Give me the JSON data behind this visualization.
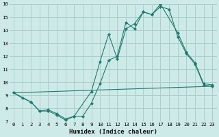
{
  "xlabel": "Humidex (Indice chaleur)",
  "xlim": [
    -0.5,
    23.5
  ],
  "ylim": [
    7,
    16
  ],
  "xticks": [
    0,
    1,
    2,
    3,
    4,
    5,
    6,
    7,
    8,
    9,
    10,
    11,
    12,
    13,
    14,
    15,
    16,
    17,
    18,
    19,
    20,
    21,
    22,
    23
  ],
  "yticks": [
    7,
    8,
    9,
    10,
    11,
    12,
    13,
    14,
    15,
    16
  ],
  "bg_color": "#ceeae8",
  "grid_color": "#aacfcc",
  "line_color": "#1e7a6d",
  "line1_x": [
    0,
    1,
    2,
    3,
    4,
    5,
    6,
    7,
    8,
    9,
    10,
    11,
    12,
    13,
    14,
    15,
    16,
    17,
    18,
    19,
    20,
    21,
    22,
    23
  ],
  "line1_y": [
    9.2,
    8.8,
    8.5,
    7.8,
    7.8,
    7.5,
    7.1,
    7.4,
    7.4,
    8.4,
    9.9,
    11.7,
    12.0,
    14.6,
    14.1,
    15.4,
    15.2,
    15.8,
    15.6,
    13.5,
    12.2,
    11.4,
    9.8,
    9.7
  ],
  "line2_x": [
    0,
    2,
    3,
    4,
    5,
    6,
    7,
    9,
    10,
    11,
    12,
    13,
    14,
    15,
    16,
    17,
    19,
    20,
    21,
    22,
    23
  ],
  "line2_y": [
    9.2,
    8.5,
    7.8,
    7.9,
    7.6,
    7.2,
    7.4,
    9.3,
    11.6,
    13.7,
    11.8,
    14.1,
    14.5,
    15.4,
    15.2,
    16.0,
    13.8,
    12.3,
    11.5,
    9.9,
    9.8
  ],
  "line3_x": [
    0,
    23
  ],
  "line3_y": [
    9.2,
    9.7
  ]
}
